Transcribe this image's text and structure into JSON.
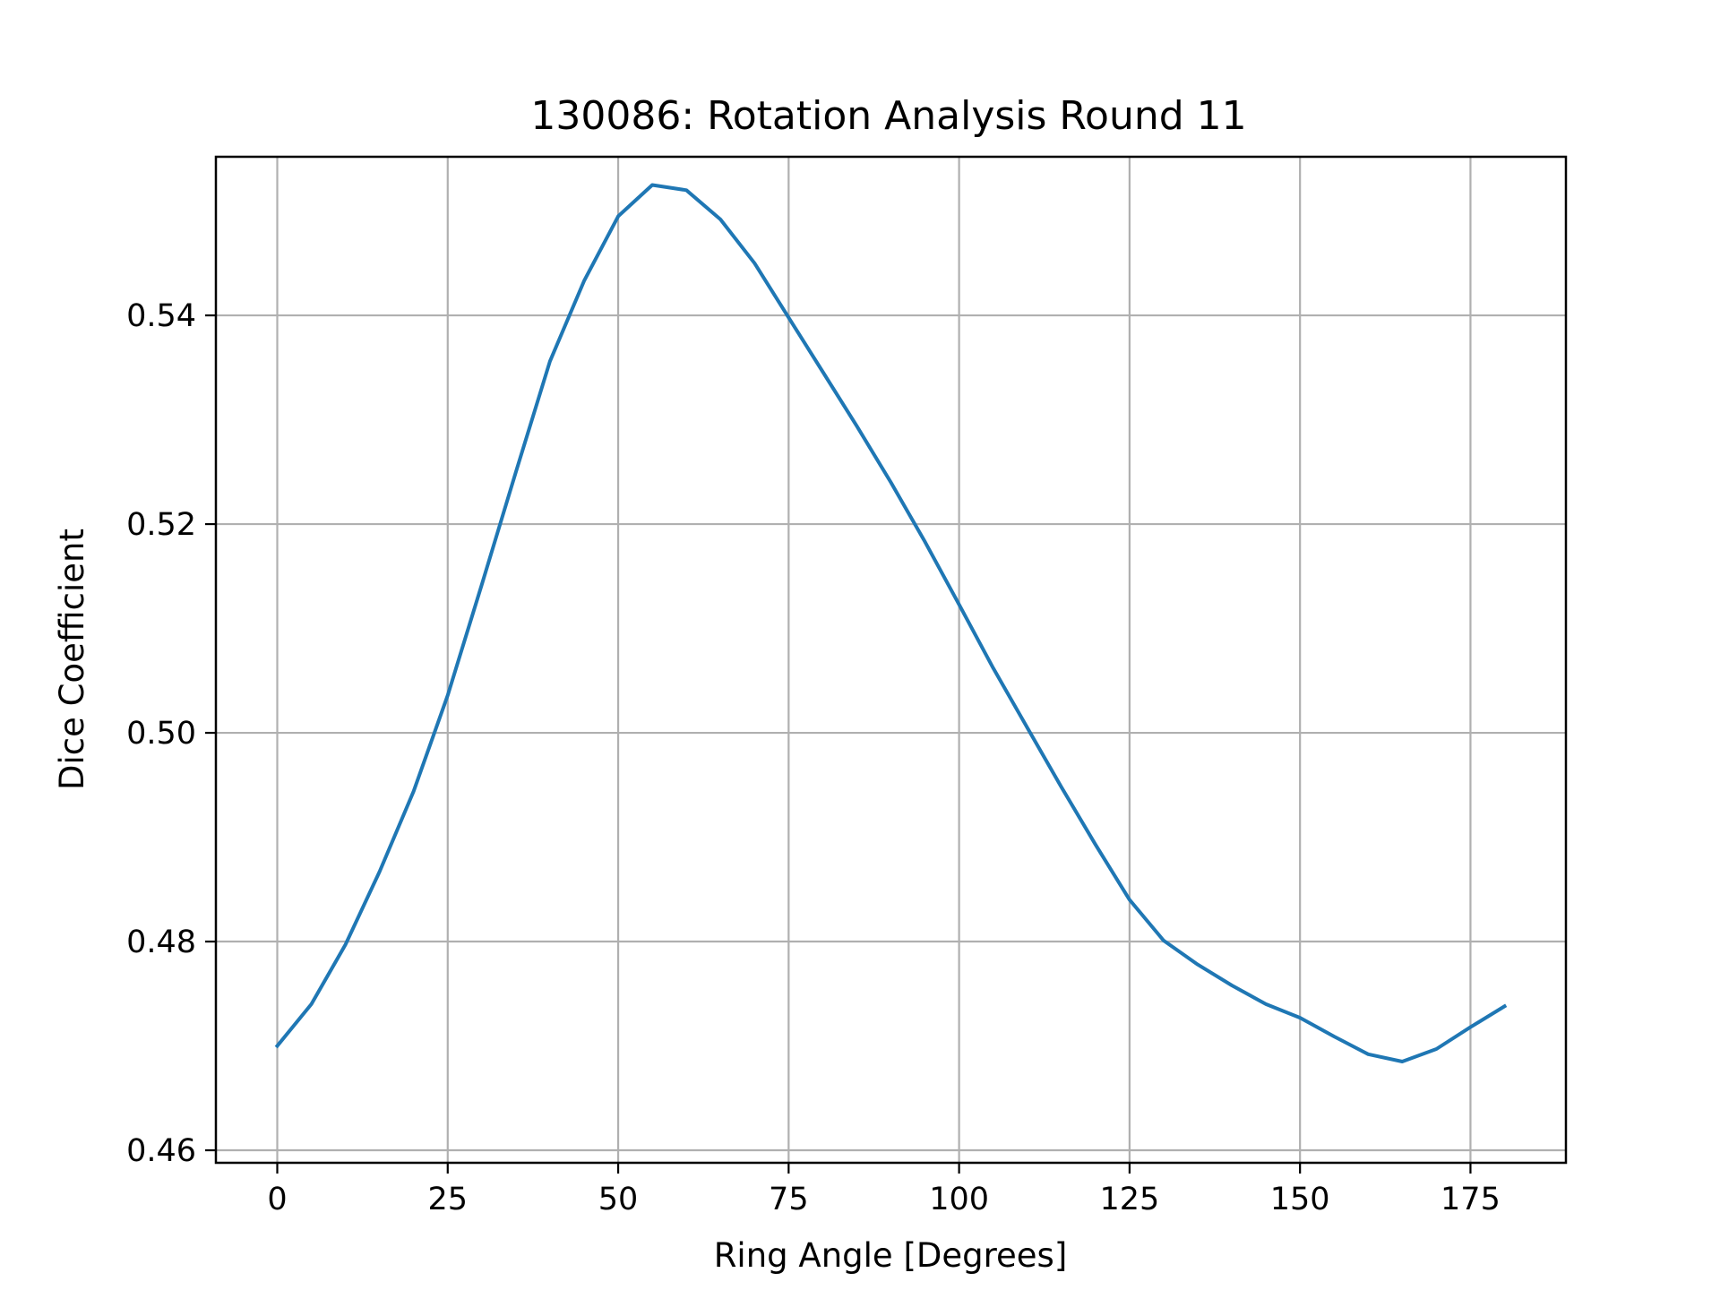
{
  "chart_data": {
    "type": "line",
    "title": "130086: Rotation Analysis Round 11",
    "xlabel": "Ring Angle [Degrees]",
    "ylabel": "Dice Coefficient",
    "xlim": [
      -9,
      189
    ],
    "ylim": [
      0.4588,
      0.5552
    ],
    "grid": true,
    "x_ticks": [
      0,
      25,
      50,
      75,
      100,
      125,
      150,
      175
    ],
    "x_tick_labels": [
      "0",
      "25",
      "50",
      "75",
      "100",
      "125",
      "150",
      "175"
    ],
    "y_ticks": [
      0.46,
      0.48,
      0.5,
      0.52,
      0.54
    ],
    "y_tick_labels": [
      "0.46",
      "0.48",
      "0.50",
      "0.52",
      "0.54"
    ],
    "series": [
      {
        "color": "#1f77b4",
        "x": [
          0,
          5,
          10,
          15,
          20,
          25,
          30,
          35,
          40,
          45,
          50,
          55,
          60,
          65,
          70,
          75,
          80,
          85,
          90,
          95,
          100,
          105,
          110,
          115,
          120,
          125,
          130,
          135,
          140,
          145,
          150,
          155,
          160,
          165,
          170,
          175,
          180
        ],
        "y": [
          0.47,
          0.474,
          0.4797,
          0.4867,
          0.4944,
          0.5036,
          0.5142,
          0.525,
          0.5356,
          0.5433,
          0.5495,
          0.5525,
          0.552,
          0.5492,
          0.545,
          0.5398,
          0.5346,
          0.5294,
          0.524,
          0.5183,
          0.5123,
          0.5062,
          0.5005,
          0.4948,
          0.4893,
          0.484,
          0.4801,
          0.4778,
          0.4758,
          0.474,
          0.4727,
          0.4709,
          0.4692,
          0.4685,
          0.4697,
          0.4718,
          0.4738
        ]
      }
    ]
  }
}
